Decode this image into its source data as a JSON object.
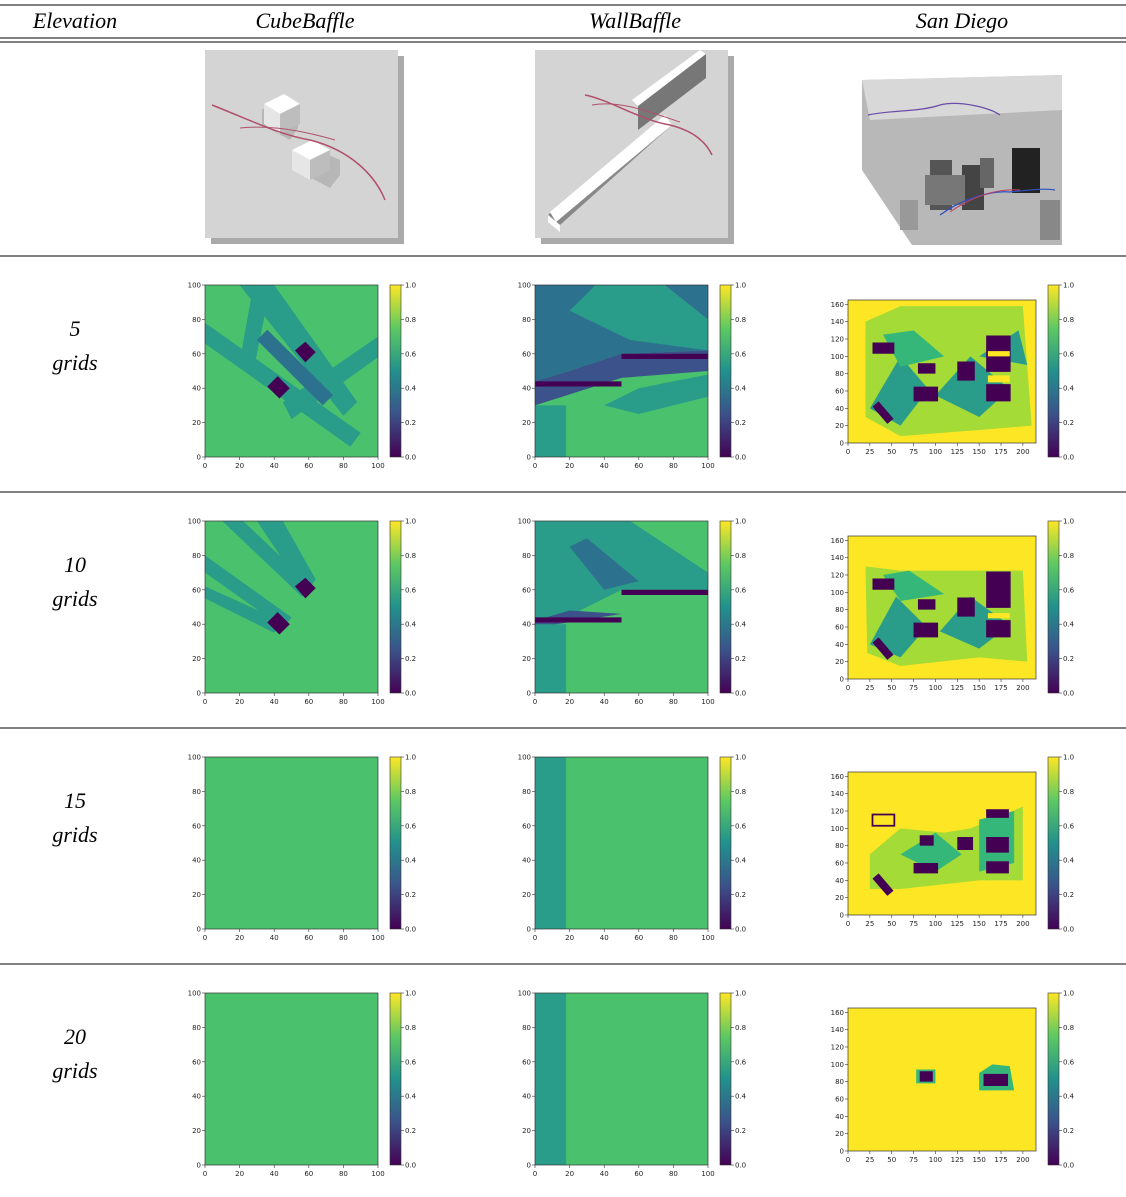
{
  "header": {
    "columns": [
      "Elevation",
      "CubeBaffle",
      "WallBaffle",
      "San Diego"
    ]
  },
  "rows": [
    {
      "elevation": "5",
      "unit": "grids"
    },
    {
      "elevation": "10",
      "unit": "grids"
    },
    {
      "elevation": "15",
      "unit": "grids"
    },
    {
      "elevation": "20",
      "unit": "grids"
    }
  ],
  "axes": {
    "baffle": {
      "xlim": [
        0,
        100
      ],
      "ylim": [
        0,
        100
      ],
      "xticks": [
        0,
        20,
        40,
        60,
        80,
        100
      ],
      "yticks": [
        0,
        20,
        40,
        60,
        80,
        100
      ]
    },
    "city": {
      "xlim": [
        0,
        215
      ],
      "ylim": [
        0,
        165
      ],
      "xticks": [
        0,
        25,
        50,
        75,
        100,
        125,
        150,
        175,
        200
      ],
      "yticks": [
        0,
        20,
        40,
        60,
        80,
        100,
        120,
        140,
        160
      ]
    },
    "colorbar": {
      "lim": [
        0,
        1
      ],
      "ticks": [
        {
          "value": 0,
          "label": "0.0"
        },
        0.2,
        0.4,
        0.6,
        0.8,
        {
          "value": 1,
          "label": "1.0"
        }
      ]
    }
  }
}
